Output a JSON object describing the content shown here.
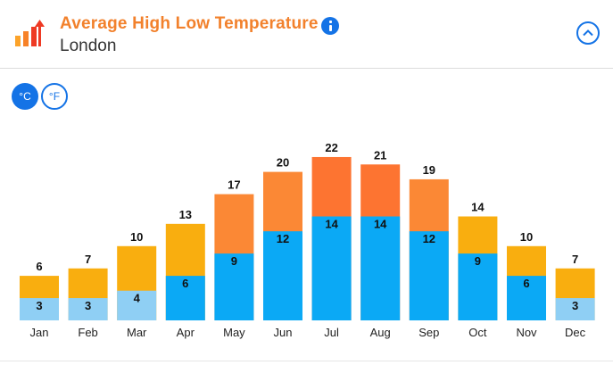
{
  "header": {
    "title": "Average High Low Temperature",
    "subtitle": "London"
  },
  "units": {
    "celsius": "°C",
    "fahrenheit": "°F",
    "active": "celsius"
  },
  "icons": {
    "logo": "bar-chart-arrow-icon",
    "info": "info-icon",
    "collapse": "chevron-up-icon"
  },
  "colors": {
    "accent": "#1473e6",
    "title": "#f2812c",
    "low_light": "#8fcff4",
    "low_mid": "#0ba9f5",
    "high_cool": "#f9ae0f",
    "high_warm": "#fb8835",
    "high_hot": "#fd7431"
  },
  "chart_data": {
    "type": "bar",
    "categories": [
      "Jan",
      "Feb",
      "Mar",
      "Apr",
      "May",
      "Jun",
      "Jul",
      "Aug",
      "Sep",
      "Oct",
      "Nov",
      "Dec"
    ],
    "series": [
      {
        "values": [
          6,
          7,
          10,
          13,
          17,
          20,
          22,
          21,
          19,
          14,
          10,
          7
        ]
      },
      {
        "values": [
          3,
          3,
          4,
          6,
          9,
          12,
          14,
          14,
          12,
          9,
          6,
          3
        ]
      }
    ],
    "ylim": [
      0,
      22
    ],
    "grid": false,
    "legend": "none"
  }
}
